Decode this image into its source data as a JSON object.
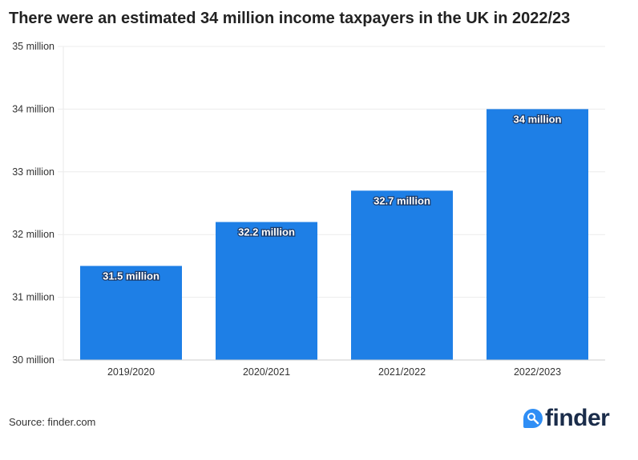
{
  "chart_data": {
    "type": "bar",
    "title": "There were an estimated 34 million income taxpayers in the UK in 2022/23",
    "categories": [
      "2019/2020",
      "2020/2021",
      "2021/2022",
      "2022/2023"
    ],
    "values": [
      31.5,
      32.2,
      32.7,
      34
    ],
    "data_labels": [
      "31.5 million",
      "32.2 million",
      "32.7 million",
      "34 million"
    ],
    "xlabel": "",
    "ylabel": "",
    "ylim": [
      30,
      35
    ],
    "yticks": [
      30,
      31,
      32,
      33,
      34,
      35
    ],
    "ytick_labels": [
      "30 million",
      "31 million",
      "32 million",
      "33 million",
      "34 million",
      "35 million"
    ],
    "grid": true,
    "bar_color": "#1e7fe6"
  },
  "footer": {
    "source": "Source: finder.com",
    "logo_text": "finder"
  }
}
